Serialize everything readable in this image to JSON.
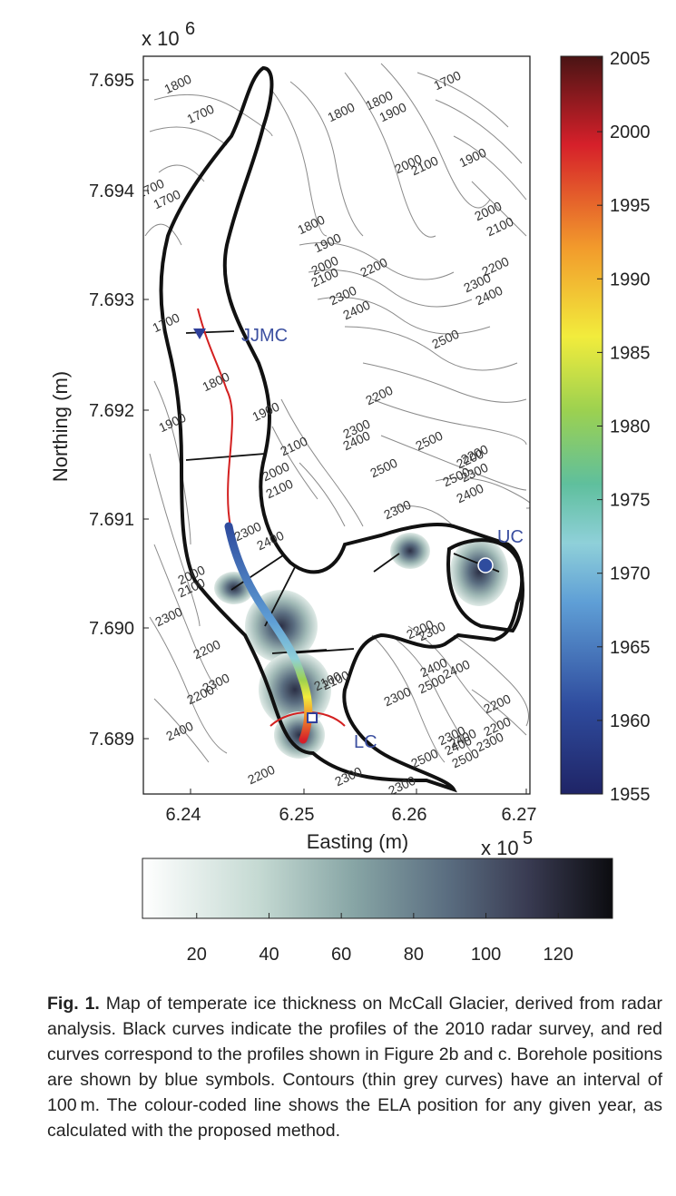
{
  "map": {
    "y_multiplier": "x 10",
    "y_multiplier_exp": "6",
    "x_multiplier": "x 10",
    "x_multiplier_exp": "5",
    "ylabel": "Northing (m)",
    "xlabel": "Easting (m)",
    "y_ticks": [
      "7.695",
      "7.694",
      "7.693",
      "7.692",
      "7.691",
      "7.690",
      "7.689"
    ],
    "x_ticks": [
      "6.24",
      "6.25",
      "6.26",
      "6.27"
    ],
    "sites": {
      "jjmc": "JJMC",
      "uc": "UC",
      "lc": "LC"
    },
    "contour_labels": [
      "1800",
      "1700",
      "1700",
      "1800",
      "1800",
      "1900",
      "1900",
      "2000",
      "2100",
      "1700",
      "1700",
      "2000",
      "2100",
      "1800",
      "1900",
      "2000",
      "2100",
      "2200",
      "2200",
      "2300",
      "2400",
      "2300",
      "2400",
      "1700",
      "2500",
      "1800",
      "1900",
      "2200",
      "1900",
      "2300",
      "2400",
      "2500",
      "2100",
      "2200",
      "2300",
      "2000",
      "2100",
      "2500",
      "2400",
      "2300",
      "2500",
      "2200",
      "2000",
      "2100",
      "2300",
      "2400",
      "2200",
      "2300",
      "2100",
      "2400",
      "2200",
      "2300",
      "2400",
      "2500",
      "2300",
      "2200",
      "2300",
      "2400",
      "2500",
      "2300",
      "2200",
      "2300",
      "2400",
      "2500",
      "2100",
      "2200",
      "2300",
      "2400",
      "2300",
      "2200"
    ]
  },
  "chart_data": {
    "type": "colorbar",
    "year_colorbar": {
      "ticks": [
        "2005",
        "2000",
        "1995",
        "1990",
        "1985",
        "1980",
        "1975",
        "1970",
        "1965",
        "1960",
        "1955"
      ],
      "range": [
        1955,
        2005
      ]
    },
    "thickness_colorbar": {
      "ticks": [
        "20",
        "40",
        "60",
        "80",
        "100",
        "120"
      ],
      "range": [
        5,
        135
      ]
    }
  },
  "caption": {
    "label": "Fig. 1.",
    "text": " Map of temperate ice thickness on McCall Glacier, derived from radar analysis. Black curves indicate the profiles of the 2010 radar survey, and red curves correspond to the profiles shown in Figure 2b and c. Borehole positions are shown by blue symbols. Contours (thin grey curves) have an interval of 100 m. The colour-coded line shows the ELA position for any given year, as calculated with the proposed method."
  }
}
